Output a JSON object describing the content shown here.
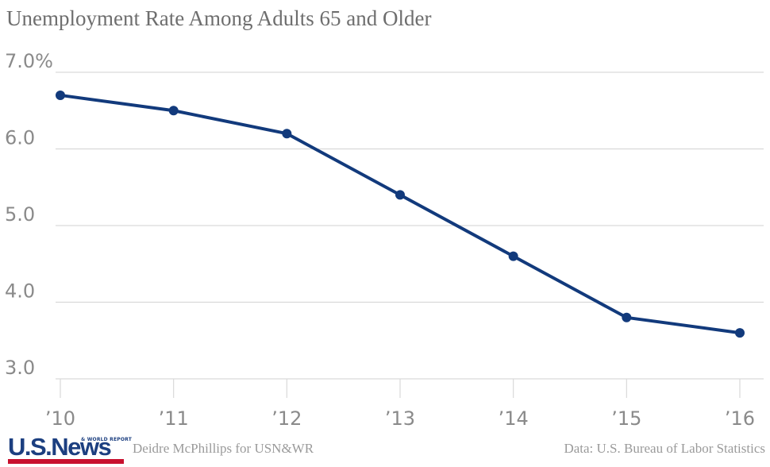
{
  "chart_data": {
    "type": "line",
    "title": "Unemployment Rate Among Adults 65 and Older",
    "categories": [
      "’10",
      "’11",
      "’12",
      "’13",
      "’14",
      "’15",
      "’16"
    ],
    "series": [
      {
        "values": [
          6.7,
          6.5,
          6.2,
          5.4,
          4.6,
          3.8,
          3.6
        ]
      }
    ],
    "yticks": [
      "7.0%",
      "6.0",
      "5.0",
      "4.0",
      "3.0"
    ],
    "ytick_values": [
      7,
      6,
      5,
      4,
      3
    ],
    "ylim": [
      3,
      7
    ],
    "grid": true,
    "line_color": "#123a7c",
    "gridline_color": "#d9d9d9"
  },
  "footer": {
    "logo_main": "U.S.News",
    "logo_sub": "& WORLD REPORT",
    "credit": "Deidre McPhillips for USN&WR",
    "source": "Data: U.S. Bureau of Labor Statistics"
  }
}
